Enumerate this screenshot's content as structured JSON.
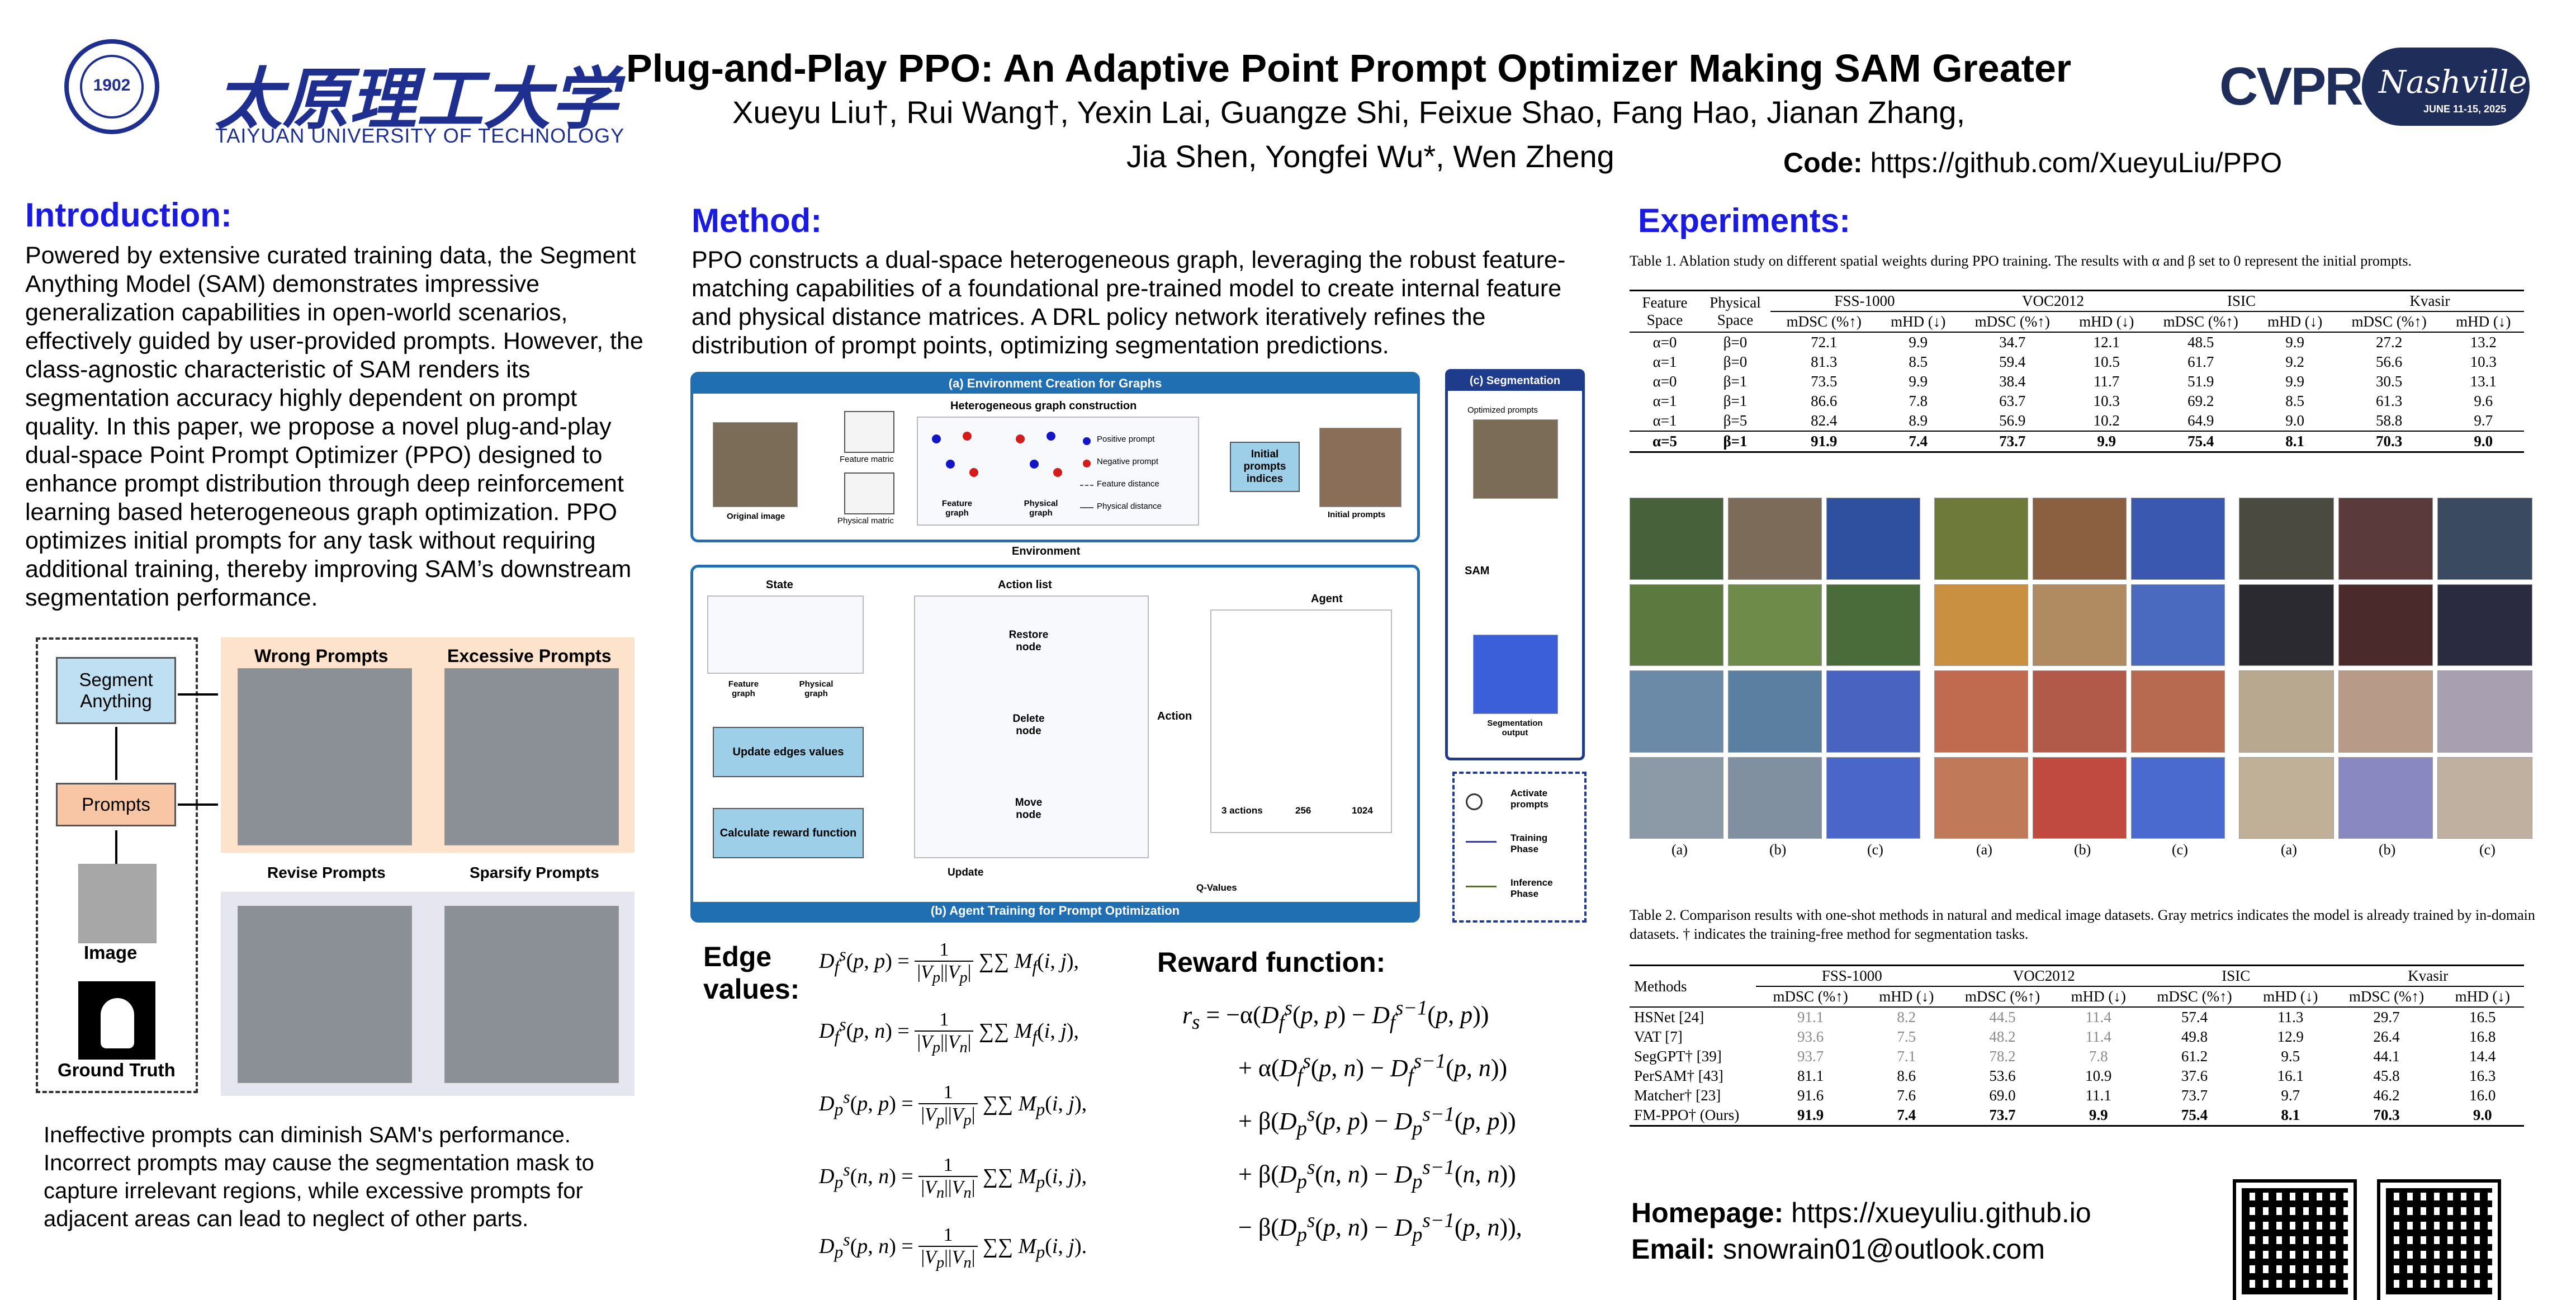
{
  "header": {
    "university_cn": "太原理工大学",
    "university_en": "TAIYUAN UNIVERSITY OF TECHNOLOGY",
    "seal_year": "1902",
    "title": "Plug-and-Play PPO: An Adaptive Point Prompt Optimizer Making SAM Greater",
    "authors_line1": "Xueyu Liu†, Rui Wang†, Yexin Lai, Guangze Shi, Feixue Shao, Fang Hao, Jianan Zhang,",
    "authors_line2": "Jia Shen, Yongfei Wu*, Wen Zheng",
    "code_label": "Code:",
    "code_url": "https://github.com/XueyuLiu/PPO",
    "conf_logo": "CVPR",
    "conf_city": "Nashville",
    "conf_dates": "JUNE 11-15, 2025"
  },
  "intro": {
    "title": "Introduction:",
    "paragraph": "Powered by extensive curated training data, the Segment Anything Model (SAM) demonstrates impressive generalization capabilities in open-world scenarios, effectively guided by user-provided prompts. However, the class-agnostic characteristic of SAM renders its segmentation accuracy highly dependent on prompt quality. In this paper, we propose a novel plug-and-play dual-space Point Prompt Optimizer (PPO) designed to enhance prompt distribution through deep reinforcement learning based heterogeneous graph optimization. PPO optimizes initial prompts for any task without requiring additional training, thereby improving SAM’s downstream segmentation performance.",
    "fig": {
      "segment_anything": "Segment Anything",
      "prompts": "Prompts",
      "image": "Image",
      "ground_truth": "Ground Truth",
      "wrong_prompts": "Wrong Prompts",
      "excessive_prompts": "Excessive Prompts",
      "revise_prompts": "Revise Prompts",
      "sparsify_prompts": "Sparsify Prompts"
    },
    "caption": "Ineffective prompts can diminish SAM's performance. Incorrect prompts may cause the segmentation mask to capture irrelevant regions, while excessive prompts for adjacent areas can lead to neglect of other parts."
  },
  "method": {
    "title": "Method:",
    "paragraph": "PPO constructs a dual-space heterogeneous graph, leveraging the robust feature-matching capabilities of a foundational pre-trained model to create internal feature and physical distance matrices. A DRL policy network iteratively refines the distribution of prompt points, optimizing segmentation predictions.",
    "diagram": {
      "a_title": "(a) Environment Creation for Graphs",
      "hetero": "Heterogeneous graph construction",
      "original_image": "Original image",
      "feature_matric": "Feature matric",
      "physical_matric": "Physical matric",
      "feature_graph": "Feature graph",
      "physical_graph": "Physical graph",
      "legend_pos": "Positive prompt",
      "legend_neg": "Negative prompt",
      "legend_fd": "Feature distance",
      "legend_pd": "Physical distance",
      "initial_indices": "Initial prompts indices",
      "initial_prompts": "Initial prompts",
      "environment": "Environment",
      "state": "State",
      "action_list": "Action list",
      "agent": "Agent",
      "restore": "Restore node",
      "delete": "Delete node",
      "move": "Move node",
      "update_edges": "Update edges values",
      "calc_reward": "Calculate reward function",
      "action": "Action",
      "update": "Update",
      "q_values": "Q-Values",
      "n_actions": "3 actions",
      "n256": "256",
      "n1024": "1024",
      "b_title": "(b) Agent Training for Prompt Optimization",
      "c_title": "(c) Segmentation",
      "optimized": "Optimized prompts",
      "sam": "SAM",
      "seg_output": "Segmentation output",
      "leg_activate": "Activate prompts",
      "leg_training": "Training Phase",
      "leg_inference": "Inference Phase"
    },
    "edge_title": "Edge values:",
    "reward_title": "Reward function:"
  },
  "experiments": {
    "title": "Experiments:",
    "table1_caption": "Table 1. Ablation study on different spatial weights during PPO training. The results with α and β set to 0 represent the initial prompts.",
    "table1": {
      "h_feature": "Feature Space",
      "h_physical": "Physical Space",
      "datasets": [
        "FSS-1000",
        "VOC2012",
        "ISIC",
        "Kvasir"
      ],
      "m1": "mDSC (%↑)",
      "m2": "mHD (↓)",
      "rows": [
        [
          "α=0",
          "β=0",
          "72.1",
          "9.9",
          "34.7",
          "12.1",
          "48.5",
          "9.9",
          "27.2",
          "13.2"
        ],
        [
          "α=1",
          "β=0",
          "81.3",
          "8.5",
          "59.4",
          "10.5",
          "61.7",
          "9.2",
          "56.6",
          "10.3"
        ],
        [
          "α=0",
          "β=1",
          "73.5",
          "9.9",
          "38.4",
          "11.7",
          "51.9",
          "9.9",
          "30.5",
          "13.1"
        ],
        [
          "α=1",
          "β=1",
          "86.6",
          "7.8",
          "63.7",
          "10.3",
          "69.2",
          "8.5",
          "61.3",
          "9.6"
        ],
        [
          "α=1",
          "β=5",
          "82.4",
          "8.9",
          "56.9",
          "10.2",
          "64.9",
          "9.0",
          "58.8",
          "9.7"
        ],
        [
          "α=5",
          "β=1",
          "91.9",
          "7.4",
          "73.7",
          "9.9",
          "75.4",
          "8.1",
          "70.3",
          "9.0"
        ]
      ]
    },
    "grid_labels": [
      "(a)",
      "(b)",
      "(c)",
      "(a)",
      "(b)",
      "(c)",
      "(a)",
      "(b)",
      "(c)"
    ],
    "table2_caption": "Table 2. Comparison results with one-shot methods in natural and medical image datasets. Gray metrics indicates the model is already trained by in-domain datasets. † indicates the training-free method for segmentation tasks.",
    "table2": {
      "h_methods": "Methods",
      "rows": [
        [
          "HSNet [24]",
          "91.1",
          "8.2",
          "44.5",
          "11.4",
          "57.4",
          "11.3",
          "29.7",
          "16.5"
        ],
        [
          "VAT [7]",
          "93.6",
          "7.5",
          "48.2",
          "11.4",
          "49.8",
          "12.9",
          "26.4",
          "16.8"
        ],
        [
          "SegGPT† [39]",
          "93.7",
          "7.1",
          "78.2",
          "7.8",
          "61.2",
          "9.5",
          "44.1",
          "14.4"
        ],
        [
          "PerSAM† [43]",
          "81.1",
          "8.6",
          "53.6",
          "10.9",
          "37.6",
          "16.1",
          "45.8",
          "16.3"
        ],
        [
          "Matcher† [23]",
          "91.6",
          "7.6",
          "69.0",
          "11.1",
          "73.7",
          "9.7",
          "46.2",
          "16.0"
        ],
        [
          "FM-PPO† (Ours)",
          "91.9",
          "7.4",
          "73.7",
          "9.9",
          "75.4",
          "8.1",
          "70.3",
          "9.0"
        ]
      ]
    },
    "homepage_label": "Homepage:",
    "homepage_url": "https://xueyuliu.github.io",
    "email_label": "Email:",
    "email": "snowrain01@outlook.com"
  }
}
